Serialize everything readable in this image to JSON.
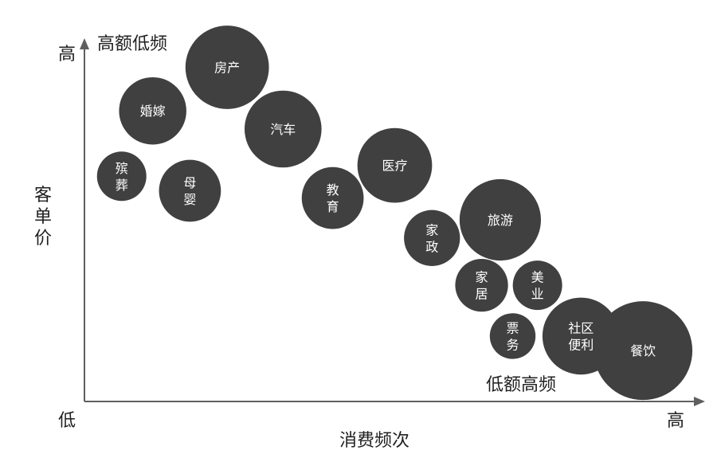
{
  "chart_data": {
    "type": "bubble",
    "xlabel": "消费频次",
    "ylabel": "客单价",
    "x_axis": {
      "low_label": "低",
      "high_label": "高"
    },
    "y_axis": {
      "low_label": "低",
      "high_label": "高"
    },
    "xlim": [
      0,
      10
    ],
    "ylim": [
      0,
      10
    ],
    "grid": false,
    "annotations": {
      "top_left": "高额低频",
      "bottom_right": "低额高频"
    },
    "bubbles": [
      {
        "label": "房产",
        "x": 2.3,
        "y": 9.2,
        "size": 10
      },
      {
        "label": "婚嫁",
        "x": 1.1,
        "y": 8.0,
        "size": 6.5
      },
      {
        "label": "殡葬",
        "x": 0.6,
        "y": 6.2,
        "size": 3.5
      },
      {
        "label": "母婴",
        "x": 1.7,
        "y": 5.8,
        "size": 5.5
      },
      {
        "label": "汽车",
        "x": 3.2,
        "y": 7.5,
        "size": 8.5
      },
      {
        "label": "教育",
        "x": 4.0,
        "y": 5.6,
        "size": 5.5
      },
      {
        "label": "医疗",
        "x": 5.0,
        "y": 6.5,
        "size": 8
      },
      {
        "label": "家政",
        "x": 5.6,
        "y": 4.5,
        "size": 4.5
      },
      {
        "label": "旅游",
        "x": 6.7,
        "y": 5.0,
        "size": 9.5
      },
      {
        "label": "家居",
        "x": 6.4,
        "y": 3.2,
        "size": 4
      },
      {
        "label": "美业",
        "x": 7.3,
        "y": 3.2,
        "size": 3.5
      },
      {
        "label": "票务",
        "x": 6.9,
        "y": 1.8,
        "size": 3
      },
      {
        "label": "社区便利",
        "x": 8.0,
        "y": 1.8,
        "size": 8.5
      },
      {
        "label": "餐饮",
        "x": 9.0,
        "y": 1.4,
        "size": 14
      }
    ]
  }
}
